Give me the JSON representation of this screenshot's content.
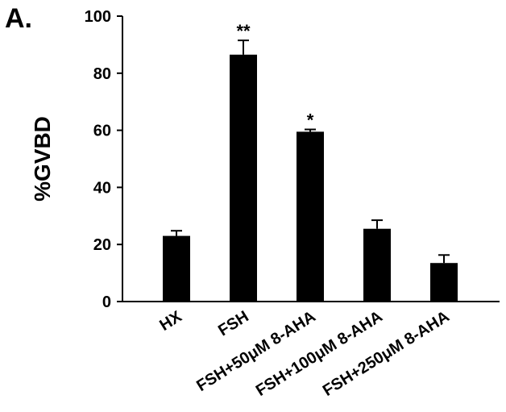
{
  "panel_label": "A.",
  "chart_data": {
    "type": "bar",
    "title": "",
    "xlabel": "",
    "ylabel": "%GVBD",
    "ylim": [
      0,
      100
    ],
    "yticks": [
      0,
      20,
      40,
      60,
      80,
      100
    ],
    "categories": [
      "HX",
      "FSH",
      "FSH+50μM 8-AHA",
      "FSH+100μM 8-AHA",
      "FSH+250μM 8-AHA"
    ],
    "values": [
      23,
      86.5,
      59.5,
      25.5,
      13.5
    ],
    "errors": [
      1.8,
      5,
      0.8,
      3,
      2.8
    ],
    "annotations": [
      "",
      "**",
      "*",
      "",
      ""
    ],
    "bar_color": "#000000",
    "grid": false,
    "legend": "none"
  }
}
